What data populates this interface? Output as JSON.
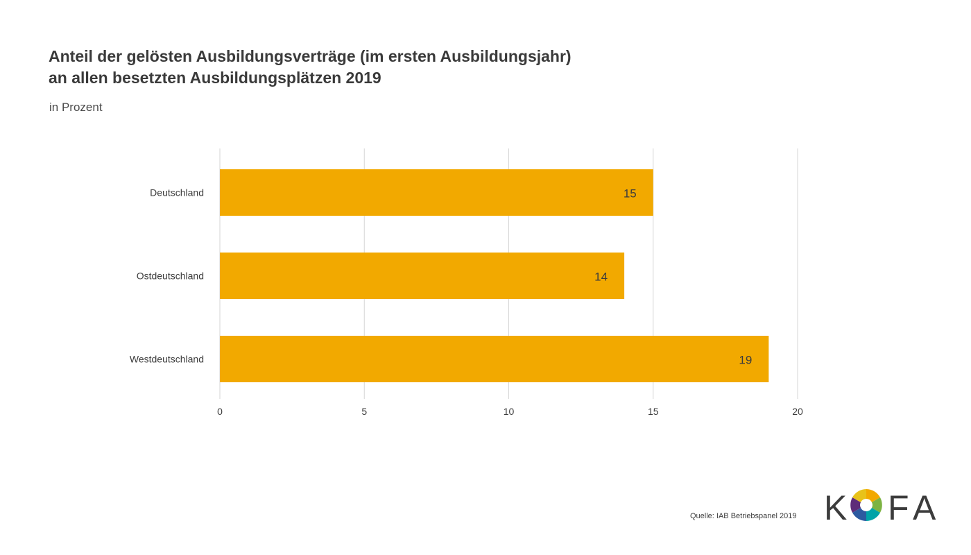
{
  "title_lines": [
    "Anteil der gelösten Ausbildungsverträge (im ersten Ausbildungsjahr)",
    "an allen besetzten Ausbildungsplätzen 2019"
  ],
  "subtitle": "in Prozent",
  "source": "Quelle: IAB Betriebspanel 2019",
  "logo": {
    "letters": [
      "K",
      "F",
      "A"
    ],
    "icon": "kofa-ring-logo"
  },
  "colors": {
    "bar": "#f2a900",
    "grid": "#d6d6d6",
    "text": "#3c3c3c"
  },
  "chart_data": {
    "type": "bar",
    "orientation": "horizontal",
    "categories": [
      "Deutschland",
      "Ostdeutschland",
      "Westdeutschland"
    ],
    "values": [
      15,
      14,
      19
    ],
    "data_labels": [
      "15",
      "14",
      "19"
    ],
    "xlim": [
      0,
      20
    ],
    "xticks": [
      0,
      5,
      10,
      15,
      20
    ],
    "grid": true,
    "title": "Anteil der gelösten Ausbildungsverträge (im ersten Ausbildungsjahr) an allen besetzten Ausbildungsplätzen 2019",
    "subtitle": "in Prozent"
  }
}
